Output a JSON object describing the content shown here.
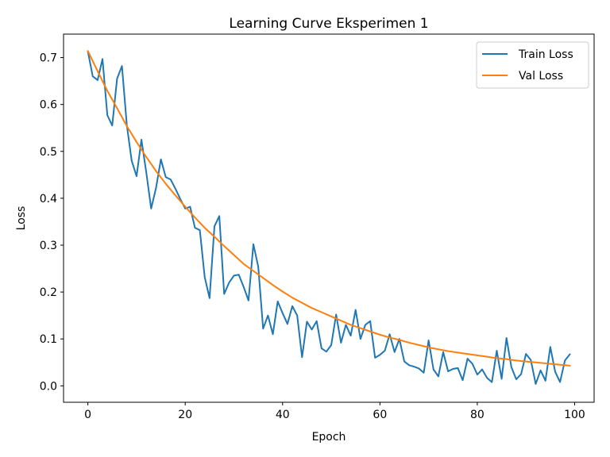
{
  "chart_data": {
    "type": "line",
    "title": "Learning Curve Eksperimen 1",
    "xlabel": "Epoch",
    "ylabel": "Loss",
    "xlim": [
      -5,
      104
    ],
    "ylim": [
      -0.035,
      0.75
    ],
    "xticks": [
      0,
      20,
      40,
      60,
      80,
      100
    ],
    "yticks": [
      0.0,
      0.1,
      0.2,
      0.3,
      0.4,
      0.5,
      0.6,
      0.7
    ],
    "ytick_labels": [
      "0.0",
      "0.1",
      "0.2",
      "0.3",
      "0.4",
      "0.5",
      "0.6",
      "0.7"
    ],
    "grid": false,
    "legend_position": "top-right",
    "series": [
      {
        "name": "Train Loss",
        "color": "#1f77b4",
        "x": [
          0,
          1,
          2,
          3,
          4,
          5,
          6,
          7,
          8,
          9,
          10,
          11,
          12,
          13,
          14,
          15,
          16,
          17,
          18,
          19,
          20,
          21,
          22,
          23,
          24,
          25,
          26,
          27,
          28,
          29,
          30,
          31,
          32,
          33,
          34,
          35,
          36,
          37,
          38,
          39,
          40,
          41,
          42,
          43,
          44,
          45,
          46,
          47,
          48,
          49,
          50,
          51,
          52,
          53,
          54,
          55,
          56,
          57,
          58,
          59,
          60,
          61,
          62,
          63,
          64,
          65,
          66,
          67,
          68,
          69,
          70,
          71,
          72,
          73,
          74,
          75,
          76,
          77,
          78,
          79,
          80,
          81,
          82,
          83,
          84,
          85,
          86,
          87,
          88,
          89,
          90,
          91,
          92,
          93,
          94,
          95,
          96,
          97,
          98,
          99
        ],
        "values": [
          0.713,
          0.66,
          0.652,
          0.697,
          0.577,
          0.555,
          0.655,
          0.682,
          0.556,
          0.48,
          0.447,
          0.525,
          0.455,
          0.378,
          0.422,
          0.483,
          0.445,
          0.44,
          0.42,
          0.398,
          0.378,
          0.382,
          0.337,
          0.332,
          0.232,
          0.187,
          0.34,
          0.362,
          0.196,
          0.22,
          0.235,
          0.237,
          0.211,
          0.182,
          0.302,
          0.254,
          0.122,
          0.15,
          0.11,
          0.18,
          0.155,
          0.132,
          0.17,
          0.15,
          0.061,
          0.137,
          0.12,
          0.138,
          0.08,
          0.073,
          0.087,
          0.152,
          0.092,
          0.13,
          0.107,
          0.162,
          0.1,
          0.13,
          0.138,
          0.06,
          0.066,
          0.075,
          0.11,
          0.072,
          0.1,
          0.052,
          0.044,
          0.041,
          0.037,
          0.028,
          0.097,
          0.035,
          0.02,
          0.072,
          0.031,
          0.036,
          0.038,
          0.012,
          0.058,
          0.047,
          0.024,
          0.035,
          0.017,
          0.008,
          0.075,
          0.015,
          0.102,
          0.04,
          0.014,
          0.025,
          0.068,
          0.055,
          0.004,
          0.033,
          0.011,
          0.083,
          0.03,
          0.008,
          0.054,
          0.067
        ]
      },
      {
        "name": "Val Loss",
        "color": "#ff7f0e",
        "x": [
          0,
          2,
          4,
          6,
          8,
          10,
          12,
          14,
          16,
          18,
          20,
          22,
          24,
          26,
          28,
          30,
          32,
          34,
          36,
          38,
          40,
          42,
          44,
          46,
          48,
          50,
          52,
          54,
          56,
          58,
          60,
          62,
          64,
          66,
          68,
          70,
          72,
          74,
          76,
          78,
          80,
          82,
          84,
          86,
          88,
          90,
          92,
          94,
          96,
          98,
          99
        ],
        "values": [
          0.714,
          0.671,
          0.629,
          0.592,
          0.554,
          0.52,
          0.488,
          0.458,
          0.431,
          0.406,
          0.382,
          0.359,
          0.337,
          0.318,
          0.298,
          0.279,
          0.26,
          0.245,
          0.23,
          0.215,
          0.201,
          0.188,
          0.177,
          0.166,
          0.157,
          0.148,
          0.139,
          0.13,
          0.123,
          0.116,
          0.109,
          0.103,
          0.098,
          0.092,
          0.087,
          0.082,
          0.078,
          0.074,
          0.071,
          0.068,
          0.065,
          0.062,
          0.059,
          0.057,
          0.054,
          0.052,
          0.05,
          0.048,
          0.046,
          0.044,
          0.043
        ]
      }
    ]
  }
}
